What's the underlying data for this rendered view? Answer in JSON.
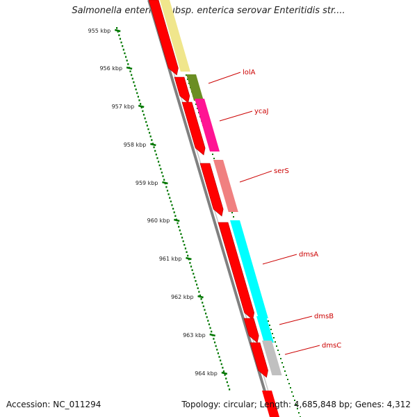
{
  "title": "Salmonella enterica subsp. enterica serovar Enteritidis str....",
  "ticks": [
    "955 kbp",
    "956 kbp",
    "957 kbp",
    "958 kbp",
    "959 kbp",
    "960 kbp",
    "961 kbp",
    "962 kbp",
    "963 kbp",
    "964 kbp"
  ],
  "genes": [
    {
      "name": "lolA",
      "color": "#6b8e23"
    },
    {
      "name": "ycaJ",
      "color": "#ff1493"
    },
    {
      "name": "serS",
      "color": "#f08080"
    },
    {
      "name": "dmsA",
      "color": "#00ffff"
    },
    {
      "name": "dmsB",
      "color": "#00ffff"
    },
    {
      "name": "dmsC",
      "color": "#c0c0c0"
    }
  ],
  "colors": {
    "cds_arrow": "#ff0000",
    "backbone": "#808080",
    "ticks": "#007700",
    "first_feature": "#f0e68c",
    "label": "#cc0000"
  },
  "footer": {
    "accession": "Accession: NC_011294",
    "stats": "Topology: circular; Length: 4,685,848 bp; Genes: 4,312"
  }
}
